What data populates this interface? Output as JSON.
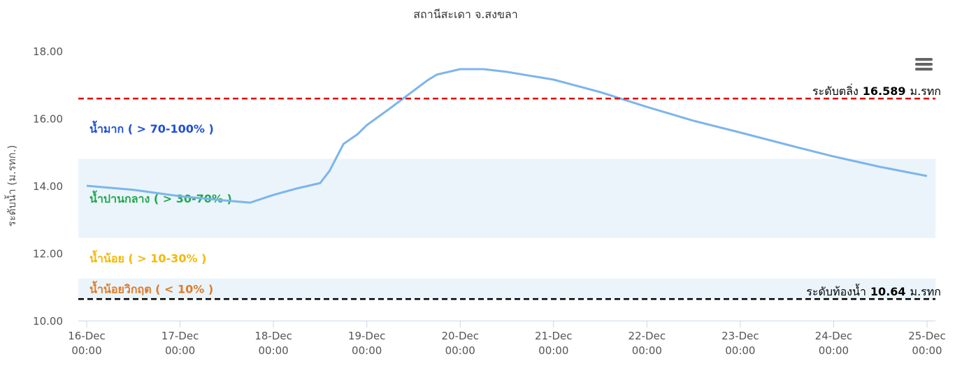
{
  "chart_data": {
    "type": "line",
    "title": "สถานีสะเดา จ.สงขลา",
    "y_axis_label": "ระดับน้ำ (ม.รทก.)",
    "x": [
      0,
      0.5,
      1,
      1.5,
      1.75,
      2,
      2.25,
      2.5,
      2.6,
      2.75,
      2.9,
      3,
      3.25,
      3.5,
      3.65,
      3.75,
      4,
      4.25,
      4.5,
      5,
      5.5,
      6,
      6.5,
      7,
      7.5,
      8,
      8.5,
      9
    ],
    "series": [
      {
        "name": "ระดับน้ำ",
        "color": "#7cb5ec",
        "values": [
          14.0,
          13.88,
          13.69,
          13.56,
          13.5,
          13.73,
          13.92,
          14.08,
          14.44,
          15.24,
          15.53,
          15.8,
          16.3,
          16.82,
          17.13,
          17.3,
          17.46,
          17.46,
          17.38,
          17.15,
          16.78,
          16.34,
          15.93,
          15.58,
          15.22,
          14.87,
          14.56,
          14.29
        ]
      }
    ],
    "xlim": [
      -0.09,
      9.09
    ],
    "xticks": [
      {
        "value": 0,
        "label": "16-Dec 00:00"
      },
      {
        "value": 1,
        "label": "17-Dec 00:00"
      },
      {
        "value": 2,
        "label": "18-Dec 00:00"
      },
      {
        "value": 3,
        "label": "19-Dec 00:00"
      },
      {
        "value": 4,
        "label": "20-Dec 00:00"
      },
      {
        "value": 5,
        "label": "21-Dec 00:00"
      },
      {
        "value": 6,
        "label": "22-Dec 00:00"
      },
      {
        "value": 7,
        "label": "23-Dec 00:00"
      },
      {
        "value": 8,
        "label": "24-Dec 00:00"
      },
      {
        "value": 9,
        "label": "25-Dec 00:00"
      }
    ],
    "ylim": [
      10,
      18
    ],
    "yticks": [
      {
        "value": 10,
        "label": "10.00"
      },
      {
        "value": 12,
        "label": "12.00"
      },
      {
        "value": 14,
        "label": "14.00"
      },
      {
        "value": 16,
        "label": "16.00"
      },
      {
        "value": 18,
        "label": "18.00"
      }
    ],
    "bands": [
      {
        "from": 14.8,
        "to": 16.589,
        "label": "น้ำมาก ( > 70-100% )",
        "color": "#1f4fd6",
        "fill": "none"
      },
      {
        "from": 12.45,
        "to": 14.8,
        "label": "น้ำปานกลาง ( > 30-70% )",
        "color": "#1fa84a",
        "fill": "#ebf4fb"
      },
      {
        "from": 11.25,
        "to": 12.45,
        "label": "น้ำน้อย ( > 10-30% )",
        "color": "#f5b800",
        "fill": "none"
      },
      {
        "from": 10.64,
        "to": 11.25,
        "label": "น้ำน้อยวิกฤต ( < 10% )",
        "color": "#e07b28",
        "fill": "#ebf4fb"
      }
    ],
    "ref_lines": [
      {
        "value": 16.589,
        "prefix": "ระดับตลิ่ง",
        "unit": "ม.รทก",
        "color": "#e00000"
      },
      {
        "value": 10.64,
        "prefix": "ระดับท้องน้ำ",
        "unit": "ม.รทก",
        "color": "#000000"
      }
    ]
  }
}
